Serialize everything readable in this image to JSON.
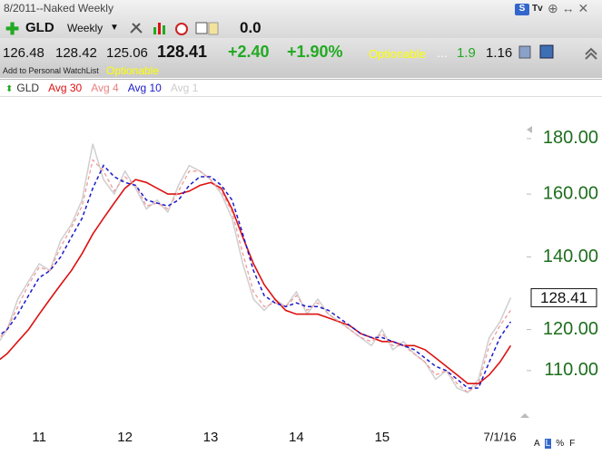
{
  "header": {
    "title": "8/2011--Naked Weekly",
    "symbol": "GLD",
    "period": "Weekly",
    "value": "0.0"
  },
  "quote": {
    "open": "126.48",
    "high": "128.42",
    "low": "125.06",
    "close": "128.41",
    "change": "+2.40",
    "change_pct": "+1.90%",
    "optionable": "Optionable",
    "ellipsis": "...",
    "stat1": "1.9",
    "stat2": "1.16"
  },
  "watchlist": {
    "add": "Add to Personal WatchList",
    "optionable": "Optionable"
  },
  "footer": {
    "buttons": [
      "A",
      "L",
      "%",
      "F"
    ]
  },
  "chart_data": {
    "type": "line",
    "log_scale": true,
    "grid": false,
    "categories": [
      null,
      null,
      null,
      null,
      "11",
      null,
      null,
      null,
      null,
      null,
      null,
      null,
      "12",
      null,
      null,
      null,
      null,
      null,
      null,
      null,
      "13",
      null,
      null,
      null,
      null,
      null,
      null,
      null,
      "14",
      null,
      null,
      null,
      null,
      null,
      null,
      null,
      "15",
      null,
      null,
      null,
      null,
      null,
      null,
      null,
      null,
      null,
      null,
      "7/1/16",
      null
    ],
    "ylim": [
      93.2,
      197
    ],
    "yticks": [
      {
        "value": 110,
        "label": "110.00"
      },
      {
        "value": 120,
        "label": "120.00"
      },
      {
        "value": 140,
        "label": "140.00"
      },
      {
        "value": 160,
        "label": "160.00"
      },
      {
        "value": 180,
        "label": "180.00"
      }
    ],
    "last_price": 128.41,
    "series": [
      {
        "name": "GLD",
        "color": "#cfcfcf",
        "legend_color": "#333333",
        "dashed": false,
        "width": 1.5,
        "values": [
          116,
          120,
          128,
          133,
          138,
          136,
          145,
          150,
          158,
          178,
          165,
          160,
          168,
          162,
          155,
          158,
          154,
          163,
          170,
          168,
          165,
          160,
          152,
          138,
          128,
          125,
          128,
          126,
          130,
          124,
          128,
          124,
          122,
          120,
          118,
          116,
          120,
          115,
          117,
          114,
          112,
          108,
          110,
          106,
          105,
          108,
          118,
          122,
          128.41
        ]
      },
      {
        "name": "Avg 30",
        "color": "#dd1111",
        "legend_color": "#dd1111",
        "dashed": false,
        "width": 1.6,
        "values": [
          112,
          114,
          117,
          120,
          124,
          128,
          132,
          136,
          141,
          147,
          152,
          157,
          162,
          165,
          164,
          162,
          160,
          160,
          161,
          163,
          164,
          162,
          155,
          146,
          138,
          132,
          128,
          125,
          124,
          124,
          124,
          123,
          122,
          121,
          119,
          118,
          117,
          117,
          116,
          116,
          115,
          113,
          111,
          109,
          107,
          107,
          109,
          112,
          116
        ]
      },
      {
        "name": "Avg 4",
        "color": "#f09a9a",
        "legend_color": "#e88080",
        "dashed": true,
        "width": 1.3,
        "values": [
          117,
          120,
          126,
          132,
          137,
          136,
          143,
          149,
          156,
          172,
          168,
          161,
          166,
          163,
          156,
          157,
          155,
          161,
          168,
          168,
          165,
          161,
          154,
          141,
          130,
          126,
          127,
          126,
          129,
          125,
          127,
          124,
          122,
          120,
          118,
          117,
          119,
          116,
          116,
          114,
          112,
          109,
          110,
          107,
          105,
          107,
          116,
          121,
          125
        ]
      },
      {
        "name": "Avg 10",
        "color": "#1a1acc",
        "legend_color": "#1a1acc",
        "dashed": true,
        "width": 1.5,
        "values": [
          118,
          120,
          124,
          129,
          134,
          136,
          140,
          146,
          152,
          162,
          170,
          166,
          164,
          163,
          158,
          157,
          156,
          158,
          163,
          166,
          166,
          163,
          158,
          147,
          136,
          129,
          127,
          126,
          127,
          126,
          126,
          125,
          123,
          121,
          119,
          118,
          118,
          117,
          116,
          115,
          113,
          111,
          110,
          108,
          106,
          106,
          112,
          118,
          122
        ]
      }
    ],
    "inactive_legend": [
      "Avg 1"
    ]
  }
}
